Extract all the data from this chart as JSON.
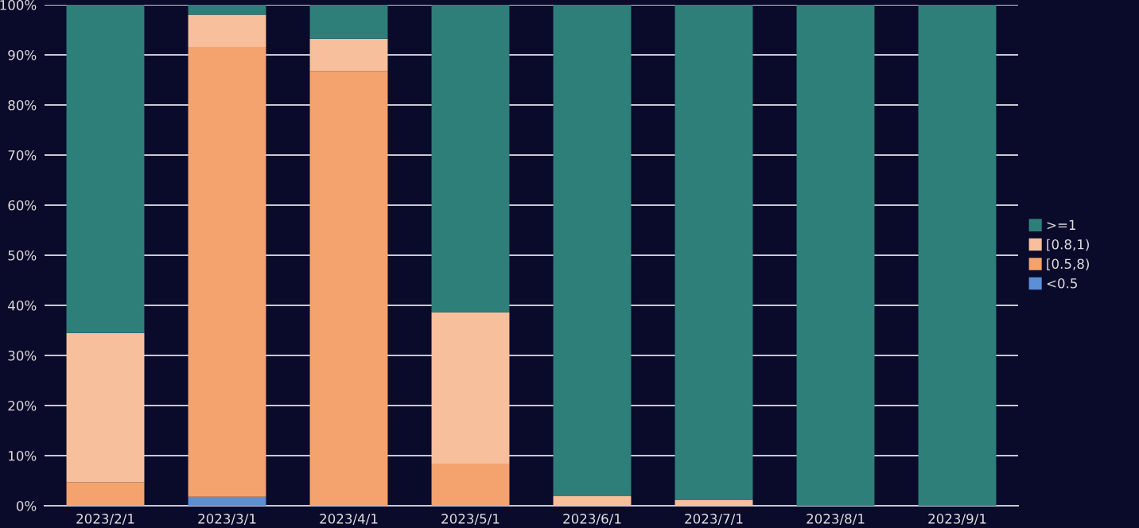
{
  "chart_data": {
    "type": "bar",
    "stacked": true,
    "categories": [
      "2023/2/1",
      "2023/3/1",
      "2023/4/1",
      "2023/5/1",
      "2023/6/1",
      "2023/7/1",
      "2023/8/1",
      "2023/9/1"
    ],
    "series": [
      {
        "name": "<0.5",
        "color": "#5b8fd6",
        "values": [
          0,
          1.8,
          0,
          0,
          0,
          0,
          0,
          0
        ]
      },
      {
        "name": "[0.5,8)",
        "color": "#f4a36e",
        "values": [
          4.7,
          89.8,
          86.8,
          8.4,
          0,
          0,
          0,
          0
        ]
      },
      {
        "name": "[0.8,1)",
        "color": "#f8bf9c",
        "values": [
          29.8,
          6.4,
          6.4,
          30.2,
          2,
          1.2,
          0,
          0
        ]
      },
      {
        "name": ">=1",
        "color": "#2e7f7a",
        "values": [
          65.5,
          2,
          6.8,
          61.4,
          98,
          98.8,
          100,
          100
        ]
      }
    ],
    "ylim": [
      0,
      100
    ],
    "yticks": [
      {
        "value": 0,
        "label": "0%"
      },
      {
        "value": 10,
        "label": "10%"
      },
      {
        "value": 20,
        "label": "20%"
      },
      {
        "value": 30,
        "label": "30%"
      },
      {
        "value": 40,
        "label": "40%"
      },
      {
        "value": 50,
        "label": "50%"
      },
      {
        "value": 60,
        "label": "60%"
      },
      {
        "value": 70,
        "label": "70%"
      },
      {
        "value": 80,
        "label": "80%"
      },
      {
        "value": 90,
        "label": "90%"
      },
      {
        "value": 100,
        "label": "100%"
      }
    ],
    "grid": "y",
    "legend": "right"
  }
}
